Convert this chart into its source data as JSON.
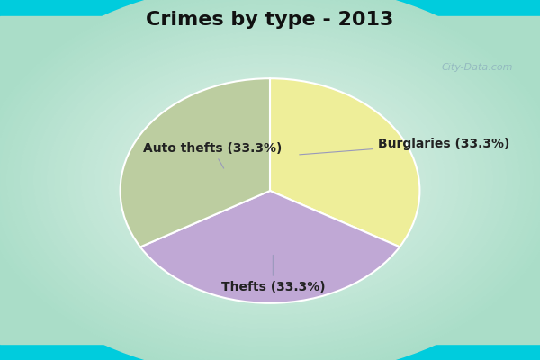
{
  "title": "Crimes by type - 2013",
  "slices": [
    {
      "label": "Auto thefts (33.3%)",
      "value": 33.33,
      "color": "#EEEE99"
    },
    {
      "label": "Burglaries (33.3%)",
      "value": 33.33,
      "color": "#C0A8D5"
    },
    {
      "label": "Thefts (33.3%)",
      "value": 33.34,
      "color": "#BCCDA0"
    }
  ],
  "background_top_strip": "#00CCDD",
  "background_gradient_outer": "#AADDC8",
  "background_gradient_inner": "#E8F4EE",
  "title_fontsize": 16,
  "label_fontsize": 10,
  "watermark": "City-Data.com",
  "startangle": 90
}
